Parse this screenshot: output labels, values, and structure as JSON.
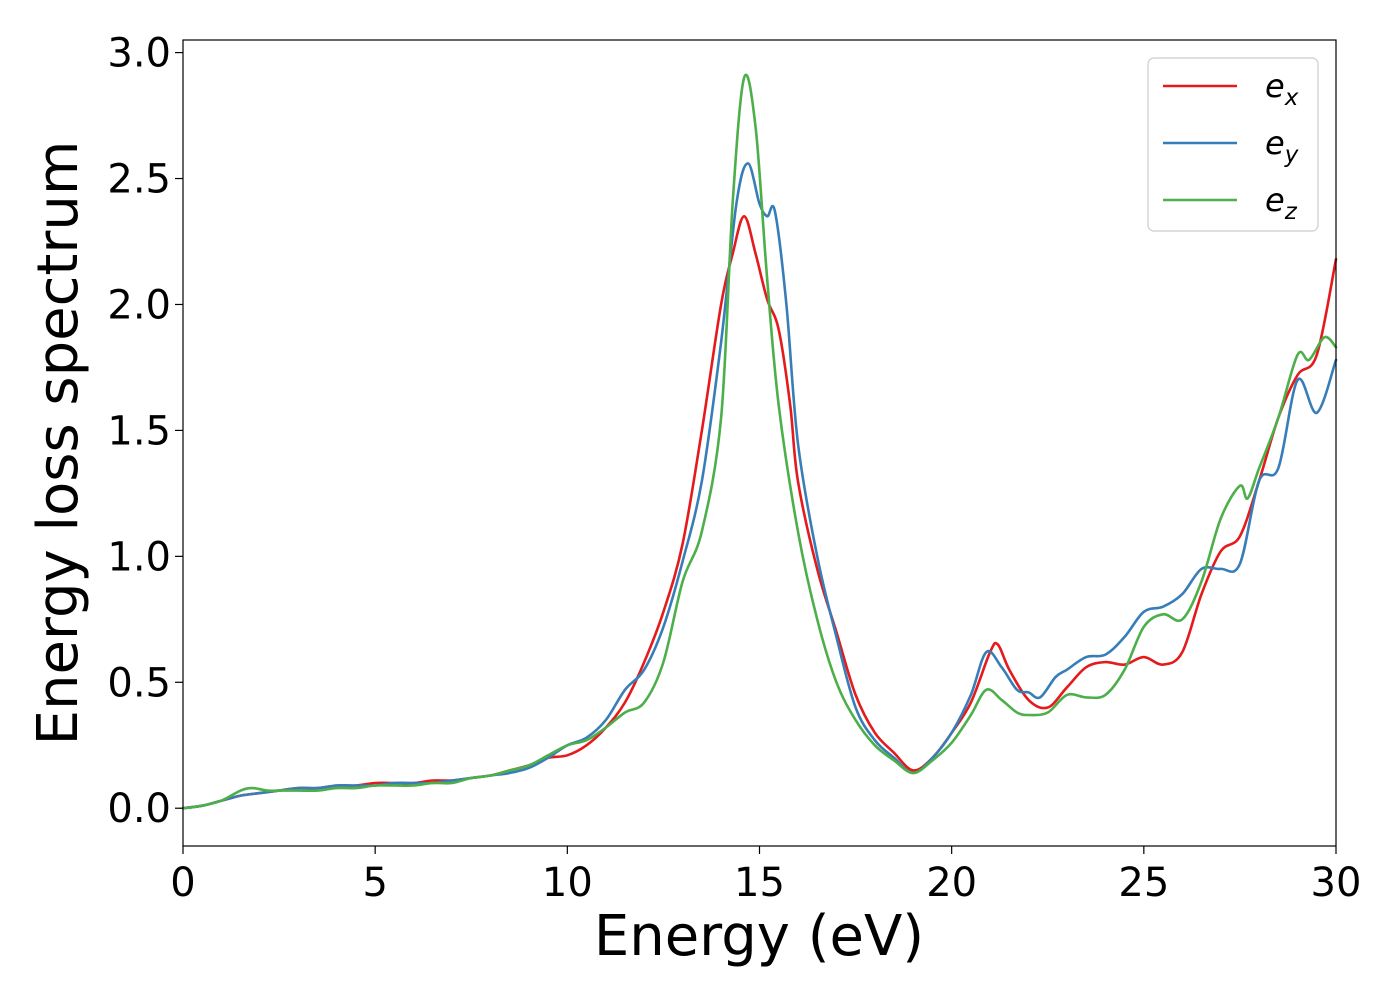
{
  "chart_data": {
    "type": "line",
    "xlabel": "Energy (eV)",
    "ylabel": "Energy loss spectrum",
    "xlim": [
      0,
      30
    ],
    "ylim": [
      -0.15,
      3.05
    ],
    "xticks": [
      0,
      5,
      10,
      15,
      20,
      25,
      30
    ],
    "xtick_labels": [
      "0",
      "5",
      "10",
      "15",
      "20",
      "25",
      "30"
    ],
    "yticks": [
      0.0,
      0.5,
      1.0,
      1.5,
      2.0,
      2.5,
      3.0
    ],
    "ytick_labels": [
      "0.0",
      "0.5",
      "1.0",
      "1.5",
      "2.0",
      "2.5",
      "3.0"
    ],
    "grid": false,
    "legend_position": "top-right",
    "series": [
      {
        "name": "e",
        "subscript": "x",
        "color": "#e41a1c",
        "x": [
          0,
          0.5,
          1,
          1.5,
          2,
          2.5,
          3,
          3.5,
          4,
          4.5,
          5,
          5.5,
          6,
          6.5,
          7,
          7.5,
          8,
          8.5,
          9,
          9.5,
          10,
          10.5,
          11,
          11.5,
          12,
          12.5,
          13,
          13.5,
          14,
          14.3,
          14.6,
          14.9,
          15.2,
          15.5,
          15.8,
          16,
          16.5,
          17,
          17.5,
          18,
          18.5,
          19,
          19.5,
          20,
          20.5,
          21,
          21.2,
          21.5,
          22,
          22.5,
          23,
          23.5,
          24,
          24.5,
          25,
          25.5,
          26,
          26.5,
          27,
          27.5,
          28,
          28.5,
          29,
          29.5,
          30
        ],
        "y": [
          0,
          0.01,
          0.03,
          0.05,
          0.06,
          0.07,
          0.08,
          0.08,
          0.09,
          0.09,
          0.1,
          0.1,
          0.1,
          0.11,
          0.11,
          0.12,
          0.13,
          0.15,
          0.17,
          0.2,
          0.21,
          0.25,
          0.32,
          0.42,
          0.58,
          0.78,
          1.05,
          1.5,
          2.0,
          2.2,
          2.35,
          2.2,
          2.02,
          1.9,
          1.6,
          1.3,
          0.95,
          0.7,
          0.45,
          0.3,
          0.22,
          0.15,
          0.2,
          0.3,
          0.42,
          0.62,
          0.65,
          0.55,
          0.43,
          0.4,
          0.48,
          0.56,
          0.58,
          0.57,
          0.6,
          0.57,
          0.62,
          0.85,
          1.02,
          1.08,
          1.3,
          1.55,
          1.72,
          1.8,
          2.18
        ]
      },
      {
        "name": "e",
        "subscript": "y",
        "color": "#377eb8",
        "x": [
          0,
          0.5,
          1,
          1.5,
          2,
          2.5,
          3,
          3.5,
          4,
          4.5,
          5,
          5.5,
          6,
          6.5,
          7,
          7.5,
          8,
          8.5,
          9,
          9.5,
          10,
          10.5,
          11,
          11.5,
          12,
          12.5,
          13,
          13.5,
          14,
          14.4,
          14.7,
          15.0,
          15.2,
          15.4,
          15.7,
          16,
          16.5,
          17,
          17.5,
          18,
          18.5,
          19,
          19.5,
          20,
          20.5,
          20.9,
          21.3,
          21.7,
          22,
          22.3,
          22.7,
          23,
          23.5,
          24,
          24.5,
          25,
          25.5,
          26,
          26.5,
          27,
          27.5,
          28,
          28.5,
          29,
          29.5,
          30
        ],
        "y": [
          0,
          0.01,
          0.03,
          0.05,
          0.06,
          0.07,
          0.08,
          0.08,
          0.09,
          0.09,
          0.09,
          0.1,
          0.1,
          0.1,
          0.11,
          0.12,
          0.13,
          0.14,
          0.16,
          0.2,
          0.25,
          0.28,
          0.35,
          0.47,
          0.55,
          0.72,
          0.98,
          1.3,
          1.85,
          2.4,
          2.56,
          2.4,
          2.35,
          2.37,
          2.0,
          1.45,
          1.0,
          0.68,
          0.4,
          0.27,
          0.2,
          0.14,
          0.2,
          0.3,
          0.45,
          0.62,
          0.56,
          0.47,
          0.46,
          0.44,
          0.52,
          0.55,
          0.6,
          0.61,
          0.68,
          0.78,
          0.8,
          0.85,
          0.95,
          0.95,
          0.97,
          1.3,
          1.35,
          1.7,
          1.57,
          1.78
        ]
      },
      {
        "name": "e",
        "subscript": "z",
        "color": "#4daf4a",
        "x": [
          0,
          0.5,
          1,
          1.5,
          1.8,
          2.2,
          2.5,
          3,
          3.5,
          4,
          4.5,
          5,
          5.5,
          6,
          6.5,
          7,
          7.5,
          8,
          8.5,
          9,
          9.5,
          10,
          10.5,
          11,
          11.5,
          12,
          12.5,
          13,
          13.5,
          14,
          14.3,
          14.6,
          14.9,
          15.2,
          15.5,
          16,
          16.5,
          17,
          17.5,
          18,
          18.5,
          19,
          19.5,
          20,
          20.5,
          20.9,
          21.3,
          21.7,
          22,
          22.5,
          23,
          23.5,
          24,
          24.5,
          25,
          25.5,
          26,
          26.5,
          27,
          27.5,
          27.7,
          28,
          28.5,
          29,
          29.3,
          29.7,
          30
        ],
        "y": [
          0,
          0.01,
          0.03,
          0.07,
          0.08,
          0.07,
          0.07,
          0.07,
          0.07,
          0.08,
          0.08,
          0.09,
          0.09,
          0.09,
          0.1,
          0.1,
          0.12,
          0.13,
          0.15,
          0.17,
          0.21,
          0.25,
          0.27,
          0.32,
          0.38,
          0.42,
          0.58,
          0.9,
          1.1,
          1.55,
          2.4,
          2.9,
          2.7,
          2.1,
          1.6,
          1.1,
          0.75,
          0.5,
          0.35,
          0.25,
          0.19,
          0.14,
          0.19,
          0.26,
          0.37,
          0.47,
          0.43,
          0.38,
          0.37,
          0.38,
          0.45,
          0.44,
          0.45,
          0.55,
          0.72,
          0.77,
          0.75,
          0.9,
          1.15,
          1.28,
          1.23,
          1.35,
          1.55,
          1.8,
          1.78,
          1.87,
          1.83
        ]
      }
    ]
  }
}
